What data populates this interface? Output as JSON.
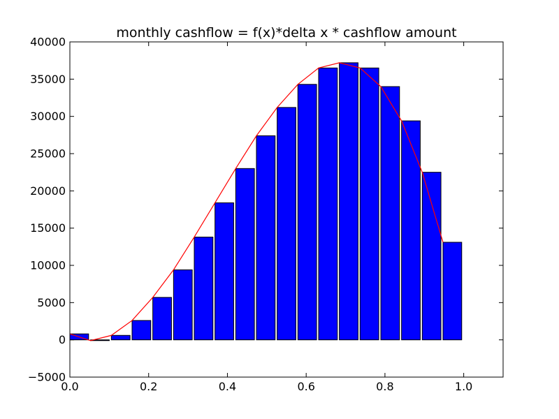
{
  "chart_data": {
    "type": "bar",
    "title": "monthly cashflow = f(x)*delta x * cashflow amount",
    "xlabel": "",
    "ylabel": "",
    "xlim": [
      0.0,
      1.1
    ],
    "ylim": [
      -5000,
      40000
    ],
    "grid": false,
    "bar_width": 0.0475,
    "x_ticks": [
      0.0,
      0.2,
      0.4,
      0.6,
      0.8,
      1.0
    ],
    "x_tick_labels": [
      "0.0",
      "0.2",
      "0.4",
      "0.6",
      "0.8",
      "1.0"
    ],
    "y_ticks": [
      -5000,
      0,
      5000,
      10000,
      15000,
      20000,
      25000,
      30000,
      35000,
      40000
    ],
    "y_tick_labels": [
      "−5000",
      "0",
      "5000",
      "10000",
      "15000",
      "20000",
      "25000",
      "30000",
      "35000",
      "40000"
    ],
    "series": [
      {
        "kind": "bar",
        "color": "#0000ff",
        "edge_color": "#000000",
        "x": [
          0.0,
          0.0526,
          0.1053,
          0.1579,
          0.2105,
          0.2632,
          0.3158,
          0.3684,
          0.4211,
          0.4737,
          0.5263,
          0.5789,
          0.6316,
          0.6842,
          0.7368,
          0.7895,
          0.8421,
          0.8947,
          0.9474
        ],
        "values": [
          800,
          -100,
          600,
          2600,
          5700,
          9400,
          13800,
          18400,
          23000,
          27400,
          31200,
          34300,
          36500,
          37200,
          36500,
          34000,
          29400,
          22500,
          13100
        ]
      },
      {
        "kind": "line",
        "color": "#ff0000",
        "x": [
          0.0,
          0.0526,
          0.1053,
          0.1579,
          0.2105,
          0.2632,
          0.3158,
          0.3684,
          0.4211,
          0.4737,
          0.5263,
          0.5789,
          0.6316,
          0.6842,
          0.7368,
          0.7895,
          0.8421,
          0.8947,
          0.9474
        ],
        "values": [
          800,
          -100,
          600,
          2600,
          5700,
          9400,
          13800,
          18400,
          23000,
          27400,
          31200,
          34300,
          36500,
          37200,
          36500,
          34000,
          29400,
          22500,
          13100
        ]
      }
    ]
  }
}
